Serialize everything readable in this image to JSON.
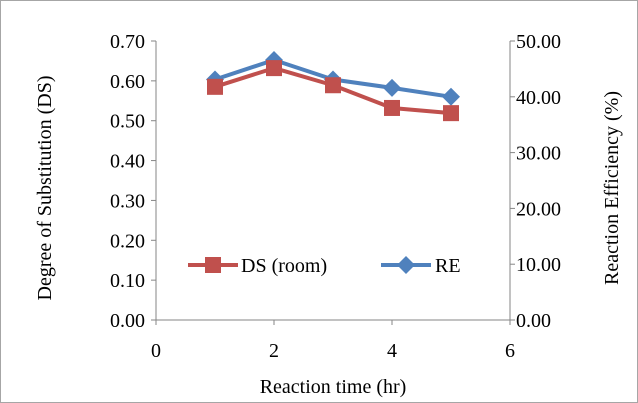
{
  "chart_data": {
    "type": "line",
    "x": [
      1,
      2,
      3,
      4,
      5
    ],
    "series": [
      {
        "name": "DS (room)",
        "axis": "left",
        "color": "#c0504d",
        "marker": "square",
        "values": [
          0.585,
          0.632,
          0.589,
          0.532,
          0.519
        ]
      },
      {
        "name": "RE",
        "axis": "right",
        "color": "#4f81bd",
        "marker": "diamond",
        "values": [
          43.1,
          46.6,
          43.1,
          41.6,
          40.0
        ]
      }
    ],
    "xlabel": "Reaction time (hr)",
    "ylabel": "Degree of Substitution (DS)",
    "y2label": "Reaction Efficiency (%)",
    "xlim": [
      0,
      6
    ],
    "ylim": [
      0,
      0.7
    ],
    "y2lim": [
      0,
      50
    ],
    "x_ticks": [
      "0",
      "2",
      "4",
      "6"
    ],
    "y_ticks": [
      "0.00",
      "0.10",
      "0.20",
      "0.30",
      "0.40",
      "0.50",
      "0.60",
      "0.70"
    ],
    "y2_ticks": [
      "0.00",
      "10.00",
      "20.00",
      "30.00",
      "40.00",
      "50.00"
    ],
    "grid": false,
    "legend": "inside-bottom-center"
  }
}
